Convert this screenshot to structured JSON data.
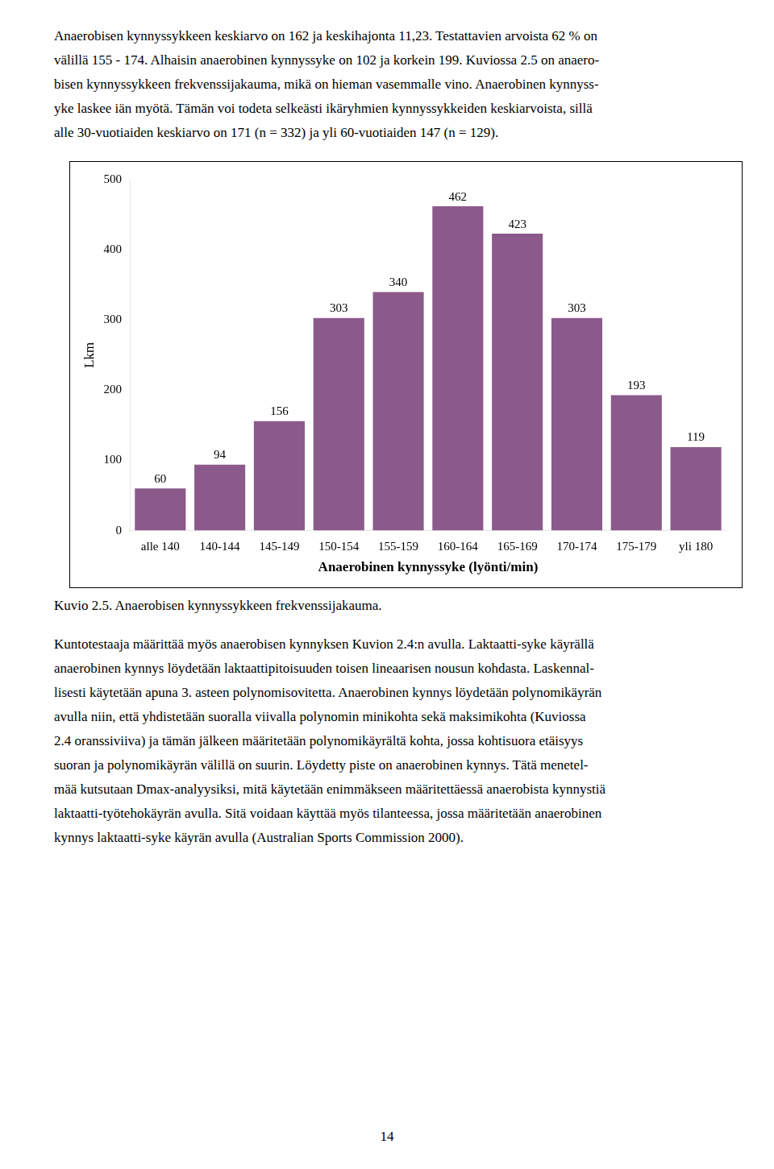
{
  "chart_data": {
    "type": "bar",
    "title": "Kuvio 2.5. Anaerobisen kynnyssykkeen frekvenssijakauma.",
    "xlabel": "Anaerobinen kynnyssyke (lyönti/min)",
    "ylabel": "Lkm",
    "categories": [
      "alle 140",
      "140-144",
      "145-149",
      "150-154",
      "155-159",
      "160-164",
      "165-169",
      "170-174",
      "175-179",
      "yli 180"
    ],
    "values": [
      60,
      94,
      156,
      303,
      340,
      462,
      423,
      303,
      193,
      119
    ],
    "color": "#8B5A8B",
    "ylim": [
      0,
      500
    ],
    "yticks": [
      0,
      100,
      200,
      300,
      400,
      500
    ],
    "grid": false,
    "data_labels": true
  },
  "text_above": [
    "Anaerobisen kynnyssykkeen keskiarvo on 162 ja keskihajonta 11,23. Testattavien arvoista 62 % on",
    "välillä 155 - 174. Alhaisin anaerobinen kynnyssyke on 102 ja korkein 199. Kuviossa 2.5 on anaero-",
    "bisen kynnyssykkeen frekvenssijakauma, mikä on hieman vasemmalle vino. Anaerobinen kynnyss-",
    "yke laskee iän myötä. Tämän voi todeta selkeästi ikäryhmien kynnyssykkeiden keskiarvoista, sillä",
    "alle 30-vuotiaiden keskiarvo on 171 (n = 332) ja yli 60-vuotiaiden 147 (n = 129)."
  ],
  "text_below": [
    "Kuntotestaaja määrittää myös anaerobisen kynnyksen Kuvion 2.4:n avulla. Laktaatti-syke käyrällä",
    "anaerobinen kynnys löydetään laktaattipitoisuuden toisen lineaarisen nousun kohdasta. Laskennal-",
    "lisesti käytetään apuna 3. asteen polynomisovitetta. Anaerobinen kynnys löydetään polynomikäyrän",
    "avulla niin, että yhdistetään suoralla viivalla polynomin minikohta sekä maksimikohta (Kuviossa",
    "2.4 oranssiviiva) ja tämän jälkeen määritetään polynomikäyrältä kohta, jossa kohtisuora etäisyys",
    "suoran ja polynomikäyrän välillä on suurin. Löydetty piste on anaerobinen kynnys. Tätä menetel-",
    "mää kutsutaan Dmax-analyysiksi, mitä käytetään enimmäkseen määritettäessä anaerobista kynnystiä",
    "laktaatti-työtehokäyrän avulla. Sitä voidaan käyttää myös tilanteessa, jossa määritetään anaerobinen",
    "kynnys laktaatti-syke käyrän avulla (Australian Sports Commission 2000)."
  ],
  "page_number": "14"
}
